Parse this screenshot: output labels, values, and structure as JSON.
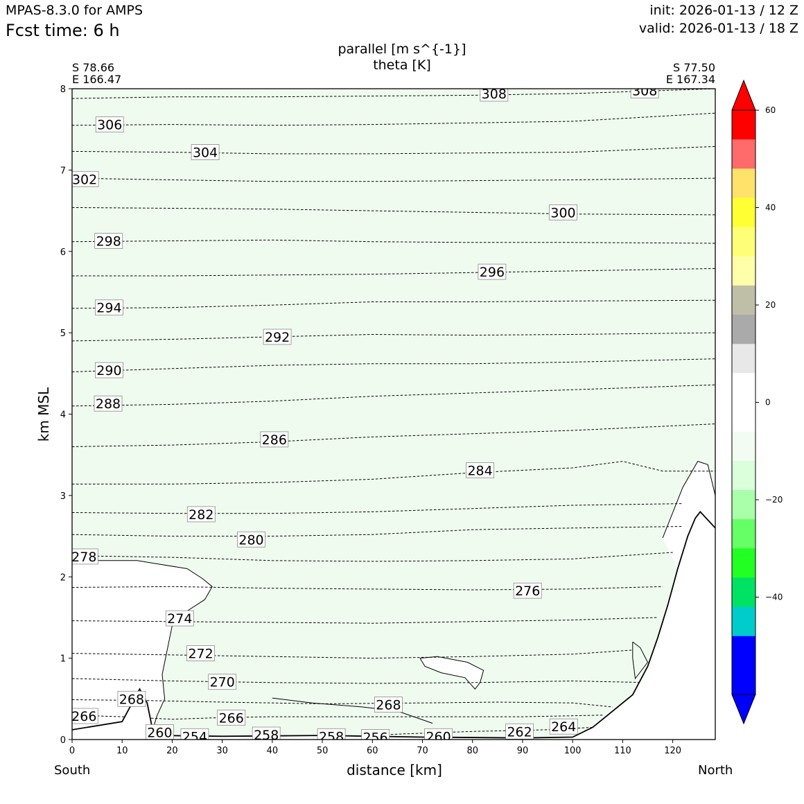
{
  "header": {
    "model": "MPAS-8.3.0 for AMPS",
    "fcst_time": "Fcst time:    6 h",
    "init": "init: 2026-01-13 / 12 Z",
    "valid": "valid: 2026-01-13 / 18 Z"
  },
  "chart_data": {
    "type": "contour-cross-section",
    "title_lines": [
      "parallel [m s^{-1}]",
      "theta [K]"
    ],
    "xlabel": "distance [km]",
    "ylabel": "km MSL",
    "xlim": [
      0,
      128.5
    ],
    "ylim": [
      0,
      8
    ],
    "x_ticks": [
      0,
      10,
      20,
      30,
      40,
      50,
      60,
      70,
      80,
      90,
      100,
      110,
      120
    ],
    "y_ticks": [
      0,
      1,
      2,
      3,
      4,
      5,
      6,
      7,
      8
    ],
    "endpoints": {
      "left": {
        "lat": "S 78.66",
        "lon": "E 166.47",
        "side": "South"
      },
      "right": {
        "lat": "S 77.50",
        "lon": "E 167.34",
        "side": "North"
      }
    },
    "shading_fill": "#f0fbf0",
    "terrain": [
      [
        0,
        0.12
      ],
      [
        10,
        0.22
      ],
      [
        12,
        0.45
      ],
      [
        13.5,
        0.62
      ],
      [
        15,
        0.45
      ],
      [
        16,
        0.15
      ],
      [
        17,
        0.05
      ],
      [
        30,
        0.04
      ],
      [
        50,
        0.05
      ],
      [
        70,
        0.03
      ],
      [
        90,
        0.02
      ],
      [
        100,
        0.03
      ],
      [
        104,
        0.15
      ],
      [
        108,
        0.35
      ],
      [
        112,
        0.55
      ],
      [
        115,
        0.9
      ],
      [
        117,
        1.25
      ],
      [
        119,
        1.65
      ],
      [
        121,
        2.1
      ],
      [
        123,
        2.5
      ],
      [
        124.5,
        2.72
      ],
      [
        125.5,
        2.8
      ],
      [
        127,
        2.7
      ],
      [
        128.5,
        2.6
      ]
    ],
    "theta_contours": [
      {
        "level": 264,
        "pts": [
          [
            62,
            0.06
          ],
          [
            80,
            0.1
          ],
          [
            95,
            0.12
          ],
          [
            104,
            0.15
          ]
        ]
      },
      {
        "level": 266,
        "pts": [
          [
            0,
            0.3
          ],
          [
            10,
            0.28
          ],
          [
            20,
            0.25
          ],
          [
            30,
            0.27
          ],
          [
            40,
            0.28
          ],
          [
            55,
            0.28
          ],
          [
            70,
            0.28
          ],
          [
            90,
            0.28
          ],
          [
            106,
            0.3
          ]
        ]
      },
      {
        "level": 268,
        "pts": [
          [
            0,
            0.49
          ],
          [
            15,
            0.48
          ],
          [
            30,
            0.46
          ],
          [
            50,
            0.44
          ],
          [
            70,
            0.45
          ],
          [
            85,
            0.46
          ],
          [
            100,
            0.45
          ],
          [
            108,
            0.4
          ]
        ]
      },
      {
        "level": 270,
        "pts": [
          [
            0,
            0.75
          ],
          [
            20,
            0.72
          ],
          [
            40,
            0.7
          ],
          [
            60,
            0.69
          ],
          [
            80,
            0.7
          ],
          [
            100,
            0.72
          ],
          [
            115,
            0.7
          ]
        ]
      },
      {
        "level": 272,
        "pts": [
          [
            0,
            1.06
          ],
          [
            20,
            1.04
          ],
          [
            40,
            1.02
          ],
          [
            60,
            1.0
          ],
          [
            80,
            1.02
          ],
          [
            100,
            1.05
          ],
          [
            112,
            1.1
          ]
        ]
      },
      {
        "level": 274,
        "pts": [
          [
            0,
            1.46
          ],
          [
            20,
            1.45
          ],
          [
            40,
            1.44
          ],
          [
            60,
            1.43
          ],
          [
            80,
            1.45
          ],
          [
            100,
            1.47
          ],
          [
            117,
            1.5
          ]
        ]
      },
      {
        "level": 276,
        "pts": [
          [
            0,
            1.87
          ],
          [
            20,
            1.88
          ],
          [
            40,
            1.86
          ],
          [
            60,
            1.85
          ],
          [
            80,
            1.84
          ],
          [
            100,
            1.85
          ],
          [
            118,
            1.88
          ]
        ]
      },
      {
        "level": 278,
        "pts": [
          [
            0,
            2.26
          ],
          [
            20,
            2.24
          ],
          [
            40,
            2.2
          ],
          [
            60,
            2.19
          ],
          [
            80,
            2.2
          ],
          [
            100,
            2.22
          ],
          [
            120,
            2.3
          ]
        ]
      },
      {
        "level": 280,
        "pts": [
          [
            0,
            2.52
          ],
          [
            20,
            2.5
          ],
          [
            40,
            2.5
          ],
          [
            60,
            2.52
          ],
          [
            80,
            2.58
          ],
          [
            100,
            2.6
          ],
          [
            122,
            2.62
          ]
        ]
      },
      {
        "level": 282,
        "pts": [
          [
            0,
            2.79
          ],
          [
            20,
            2.78
          ],
          [
            40,
            2.78
          ],
          [
            60,
            2.8
          ],
          [
            80,
            2.84
          ],
          [
            100,
            2.88
          ],
          [
            122,
            2.9
          ]
        ]
      },
      {
        "level": 284,
        "pts": [
          [
            0,
            3.14
          ],
          [
            20,
            3.14
          ],
          [
            40,
            3.16
          ],
          [
            60,
            3.2
          ],
          [
            80,
            3.28
          ],
          [
            100,
            3.34
          ],
          [
            110,
            3.42
          ],
          [
            118,
            3.3
          ],
          [
            128.5,
            3.3
          ]
        ]
      },
      {
        "level": 286,
        "pts": [
          [
            0,
            3.6
          ],
          [
            20,
            3.62
          ],
          [
            40,
            3.66
          ],
          [
            60,
            3.72
          ],
          [
            80,
            3.76
          ],
          [
            100,
            3.8
          ],
          [
            128.5,
            3.88
          ]
        ]
      },
      {
        "level": 288,
        "pts": [
          [
            0,
            4.1
          ],
          [
            20,
            4.12
          ],
          [
            40,
            4.16
          ],
          [
            60,
            4.22
          ],
          [
            80,
            4.26
          ],
          [
            100,
            4.3
          ],
          [
            128.5,
            4.36
          ]
        ]
      },
      {
        "level": 290,
        "pts": [
          [
            0,
            4.52
          ],
          [
            20,
            4.56
          ],
          [
            40,
            4.6
          ],
          [
            60,
            4.62
          ],
          [
            80,
            4.62
          ],
          [
            100,
            4.64
          ],
          [
            128.5,
            4.68
          ]
        ]
      },
      {
        "level": 292,
        "pts": [
          [
            0,
            4.9
          ],
          [
            20,
            4.92
          ],
          [
            40,
            4.95
          ],
          [
            60,
            4.98
          ],
          [
            80,
            4.97
          ],
          [
            100,
            4.98
          ],
          [
            128.5,
            5.0
          ]
        ]
      },
      {
        "level": 294,
        "pts": [
          [
            0,
            5.3
          ],
          [
            20,
            5.31
          ],
          [
            40,
            5.34
          ],
          [
            60,
            5.38
          ],
          [
            80,
            5.38
          ],
          [
            100,
            5.39
          ],
          [
            128.5,
            5.4
          ]
        ]
      },
      {
        "level": 296,
        "pts": [
          [
            0,
            5.7
          ],
          [
            20,
            5.7
          ],
          [
            40,
            5.71
          ],
          [
            60,
            5.72
          ],
          [
            80,
            5.74
          ],
          [
            100,
            5.76
          ],
          [
            128.5,
            5.79
          ]
        ]
      },
      {
        "level": 298,
        "pts": [
          [
            0,
            6.12
          ],
          [
            20,
            6.13
          ],
          [
            40,
            6.14
          ],
          [
            60,
            6.12
          ],
          [
            80,
            6.11
          ],
          [
            100,
            6.11
          ],
          [
            128.5,
            6.1
          ]
        ]
      },
      {
        "level": 300,
        "pts": [
          [
            0,
            6.54
          ],
          [
            20,
            6.53
          ],
          [
            40,
            6.52
          ],
          [
            60,
            6.5
          ],
          [
            80,
            6.48
          ],
          [
            100,
            6.46
          ],
          [
            128.5,
            6.45
          ]
        ]
      },
      {
        "level": 302,
        "pts": [
          [
            0,
            6.9
          ],
          [
            20,
            6.88
          ],
          [
            40,
            6.86
          ],
          [
            60,
            6.86
          ],
          [
            80,
            6.87
          ],
          [
            100,
            6.88
          ],
          [
            128.5,
            6.9
          ]
        ]
      },
      {
        "level": 304,
        "pts": [
          [
            0,
            7.23
          ],
          [
            20,
            7.22
          ],
          [
            40,
            7.2
          ],
          [
            60,
            7.2
          ],
          [
            80,
            7.21
          ],
          [
            100,
            7.22
          ],
          [
            128.5,
            7.29
          ]
        ]
      },
      {
        "level": 306,
        "pts": [
          [
            0,
            7.55
          ],
          [
            20,
            7.56
          ],
          [
            40,
            7.55
          ],
          [
            60,
            7.56
          ],
          [
            80,
            7.58
          ],
          [
            100,
            7.6
          ],
          [
            128.5,
            7.7
          ]
        ]
      },
      {
        "level": 308,
        "pts": [
          [
            0,
            7.88
          ],
          [
            20,
            7.9
          ],
          [
            40,
            7.9
          ],
          [
            60,
            7.91
          ],
          [
            80,
            7.92
          ],
          [
            100,
            7.94
          ],
          [
            128.5,
            8.0
          ]
        ]
      }
    ],
    "theta_labels": [
      {
        "text": "308",
        "x": 84.3,
        "y": 7.94
      },
      {
        "text": "308",
        "x": 114.4,
        "y": 7.98
      },
      {
        "text": "306",
        "x": 7.5,
        "y": 7.56
      },
      {
        "text": "304",
        "x": 26.6,
        "y": 7.22
      },
      {
        "text": "302",
        "x": 2.5,
        "y": 6.89
      },
      {
        "text": "300",
        "x": 98.1,
        "y": 6.48
      },
      {
        "text": "298",
        "x": 7.3,
        "y": 6.13
      },
      {
        "text": "296",
        "x": 83.9,
        "y": 5.75
      },
      {
        "text": "294",
        "x": 7.4,
        "y": 5.31
      },
      {
        "text": "292",
        "x": 41.0,
        "y": 4.95
      },
      {
        "text": "290",
        "x": 7.4,
        "y": 4.54
      },
      {
        "text": "288",
        "x": 7.2,
        "y": 4.13
      },
      {
        "text": "286",
        "x": 40.4,
        "y": 3.69
      },
      {
        "text": "284",
        "x": 81.5,
        "y": 3.31
      },
      {
        "text": "282",
        "x": 25.8,
        "y": 2.77
      },
      {
        "text": "280",
        "x": 35.8,
        "y": 2.46
      },
      {
        "text": "278",
        "x": 2.4,
        "y": 2.25
      },
      {
        "text": "276",
        "x": 91.0,
        "y": 1.83
      },
      {
        "text": "274",
        "x": 21.5,
        "y": 1.49
      },
      {
        "text": "272",
        "x": 25.7,
        "y": 1.06
      },
      {
        "text": "270",
        "x": 30.0,
        "y": 0.71
      },
      {
        "text": "268",
        "x": 11.9,
        "y": 0.5
      },
      {
        "text": "268",
        "x": 63.2,
        "y": 0.43
      },
      {
        "text": "266",
        "x": 2.4,
        "y": 0.29
      },
      {
        "text": "266",
        "x": 31.8,
        "y": 0.27
      },
      {
        "text": "264",
        "x": 98.2,
        "y": 0.16
      },
      {
        "text": "262",
        "x": 89.4,
        "y": 0.1
      },
      {
        "text": "260",
        "x": 17.5,
        "y": 0.09
      },
      {
        "text": "260",
        "x": 73.2,
        "y": 0.04
      },
      {
        "text": "254",
        "x": 24.5,
        "y": 0.04
      },
      {
        "text": "258",
        "x": 38.8,
        "y": 0.06
      },
      {
        "text": "258",
        "x": 51.8,
        "y": 0.04
      },
      {
        "text": "256",
        "x": 60.6,
        "y": 0.03
      }
    ],
    "parallel_zero_contours": [
      [
        [
          0,
          2.2
        ],
        [
          5,
          2.2
        ],
        [
          10,
          2.2
        ],
        [
          13,
          2.2
        ],
        [
          17,
          2.16
        ],
        [
          23,
          2.1
        ],
        [
          26,
          1.98
        ],
        [
          28,
          1.88
        ],
        [
          26.5,
          1.72
        ],
        [
          23,
          1.58
        ],
        [
          20,
          1.4
        ],
        [
          19,
          1.1
        ],
        [
          18,
          0.8
        ],
        [
          18.5,
          0.5
        ],
        [
          17,
          0.3
        ],
        [
          16,
          0.1
        ]
      ],
      [
        [
          69.5,
          1.0
        ],
        [
          73,
          1.02
        ],
        [
          79,
          0.95
        ],
        [
          82.2,
          0.85
        ],
        [
          81.5,
          0.7
        ],
        [
          80.5,
          0.62
        ],
        [
          78.5,
          0.76
        ],
        [
          73.8,
          0.82
        ],
        [
          70.5,
          0.9
        ],
        [
          69.5,
          1.0
        ]
      ],
      [
        [
          40,
          0.51
        ],
        [
          48,
          0.45
        ],
        [
          58,
          0.4
        ],
        [
          65,
          0.35
        ],
        [
          72,
          0.2
        ]
      ],
      [
        [
          118,
          2.48
        ],
        [
          122,
          3.1
        ],
        [
          125,
          3.42
        ],
        [
          127,
          3.38
        ],
        [
          128.5,
          3.0
        ]
      ],
      [
        [
          112,
          1.2
        ],
        [
          113.5,
          1.13
        ],
        [
          115,
          0.95
        ],
        [
          112.5,
          0.75
        ],
        [
          112,
          1.0
        ],
        [
          112,
          1.2
        ]
      ],
      [
        [
          0,
          0.9
        ],
        [
          0,
          0.0
        ]
      ]
    ]
  },
  "colorbar": {
    "tick_labels": [
      "60",
      "40",
      "20",
      "0",
      "−20",
      "−40"
    ],
    "tick_values": [
      60,
      40,
      20,
      0,
      -20,
      -40
    ],
    "colors_top_to_bottom": [
      "#ff0000",
      "#ff6a6a",
      "#ffe26a",
      "#ffff33",
      "#ffff77",
      "#ffffaa",
      "#bfbfa8",
      "#aaaaaa",
      "#e8e8e8",
      "#ffffff",
      "#ffffff",
      "#f2fcf2",
      "#dbffdb",
      "#aaffaa",
      "#66ff66",
      "#22ff22",
      "#00e264",
      "#00cccc",
      "#0000ff",
      "#0000ff"
    ],
    "over_color": "#ff0000",
    "under_color": "#0000ff"
  }
}
